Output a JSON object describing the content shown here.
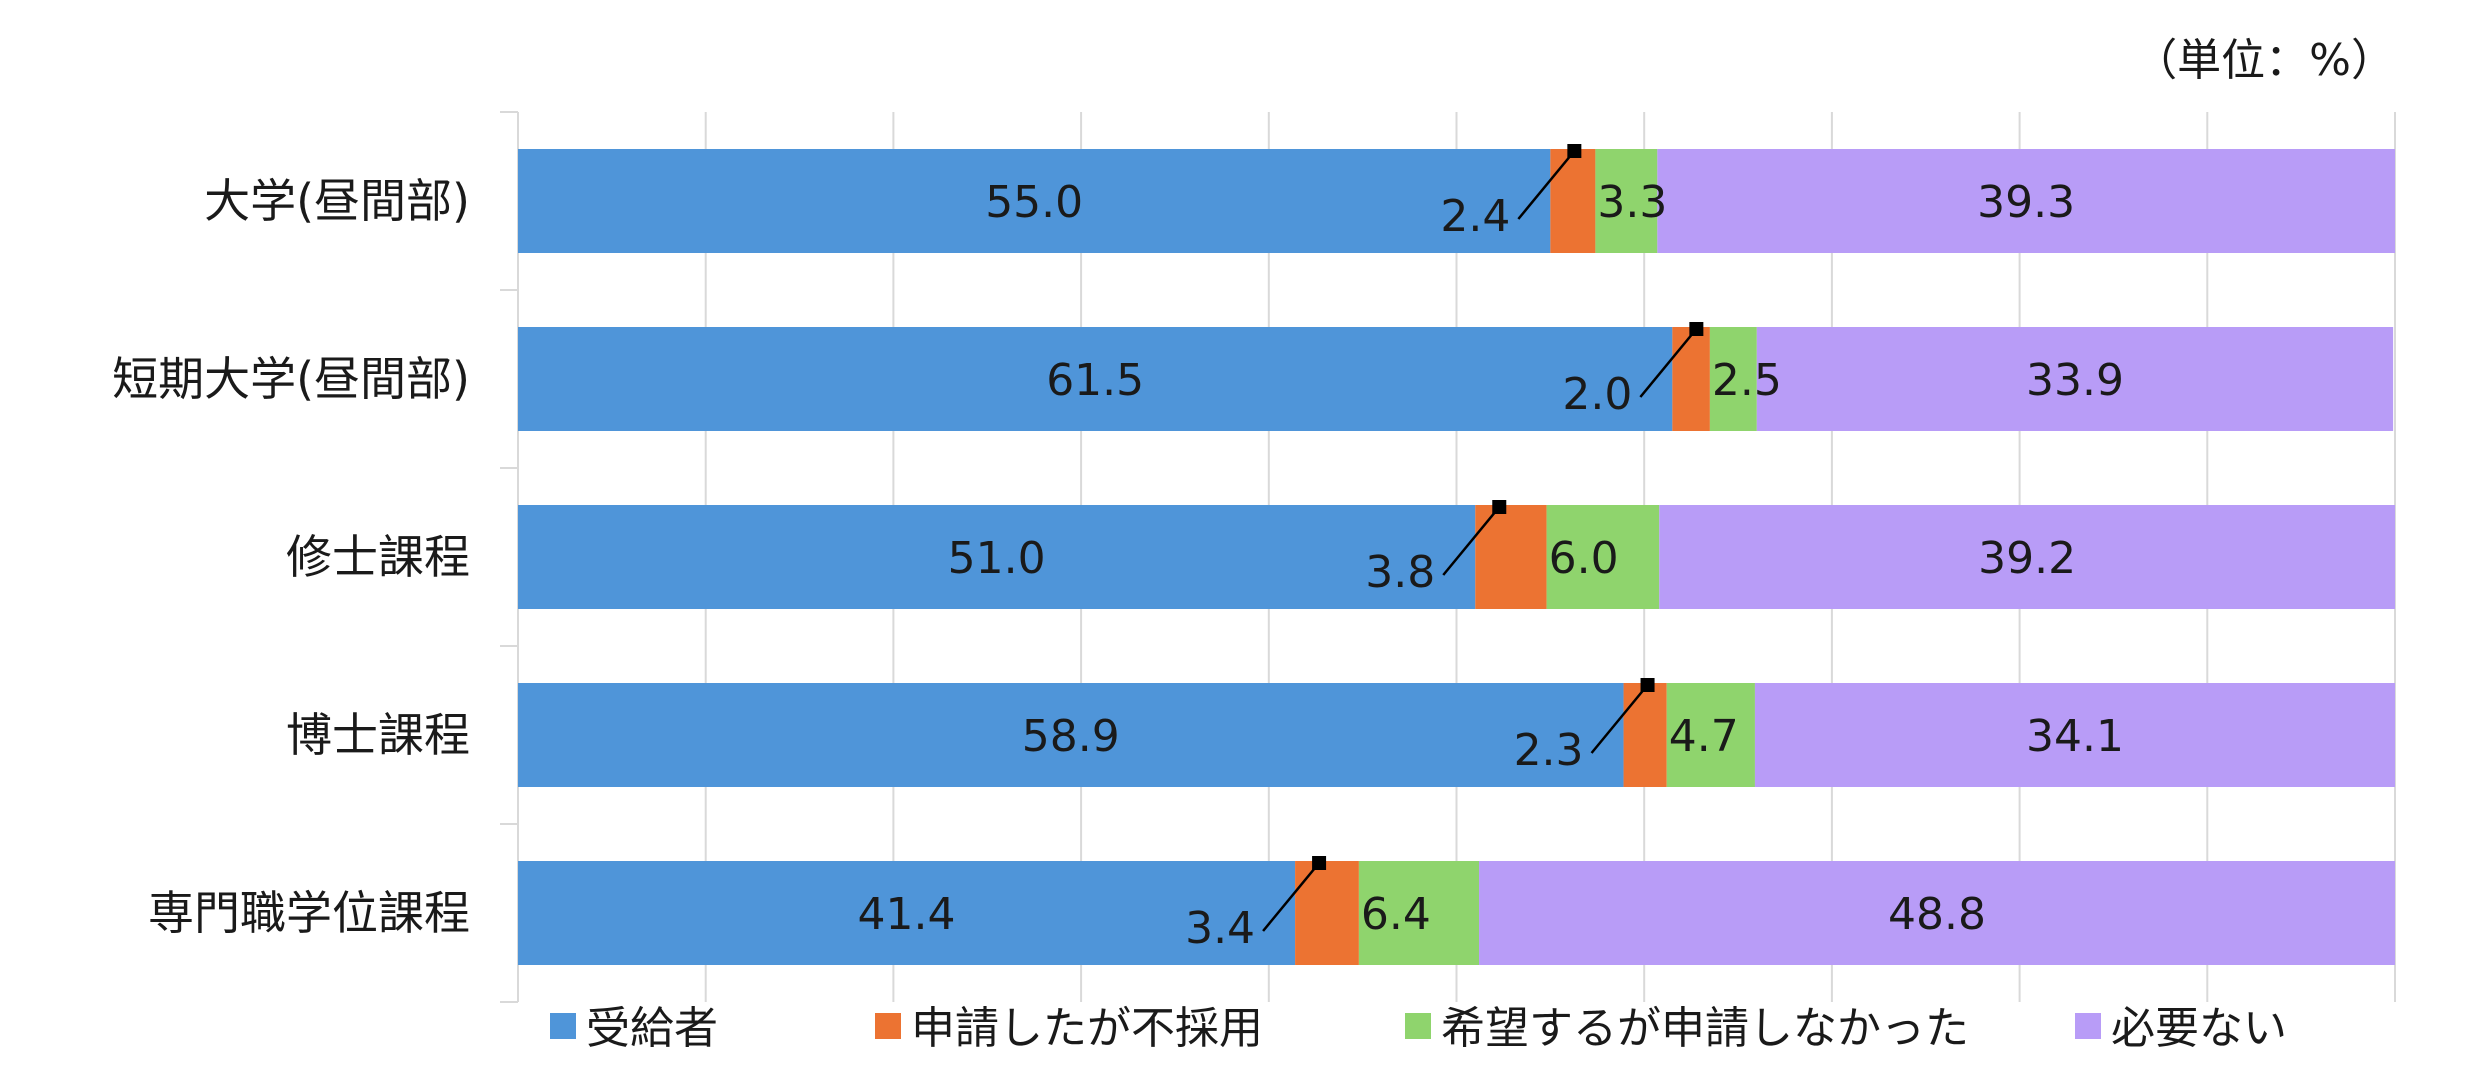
{
  "chart_data": {
    "type": "bar",
    "orientation": "horizontal",
    "stacked": "percent",
    "unit_label": "（単位：%）",
    "categories": [
      "大学(昼間部)",
      "短期大学(昼間部)",
      "修士課程",
      "博士課程",
      "専門職学位課程"
    ],
    "series": [
      {
        "name": "受給者",
        "color": "#4f95d9",
        "values": [
          55.0,
          61.5,
          51.0,
          58.9,
          41.4
        ]
      },
      {
        "name": "申請したが不採用",
        "color": "#ec7332",
        "values": [
          2.4,
          2.0,
          3.8,
          2.3,
          3.4
        ]
      },
      {
        "name": "希望するが申請しなかった",
        "color": "#8fd46d",
        "values": [
          3.3,
          2.5,
          6.0,
          4.7,
          6.4
        ]
      },
      {
        "name": "必要ない",
        "color": "#b89cf7",
        "values": [
          39.3,
          33.9,
          39.2,
          34.1,
          48.8
        ]
      }
    ],
    "xlim": [
      0,
      100
    ],
    "grid": true,
    "legend": "bottom"
  }
}
